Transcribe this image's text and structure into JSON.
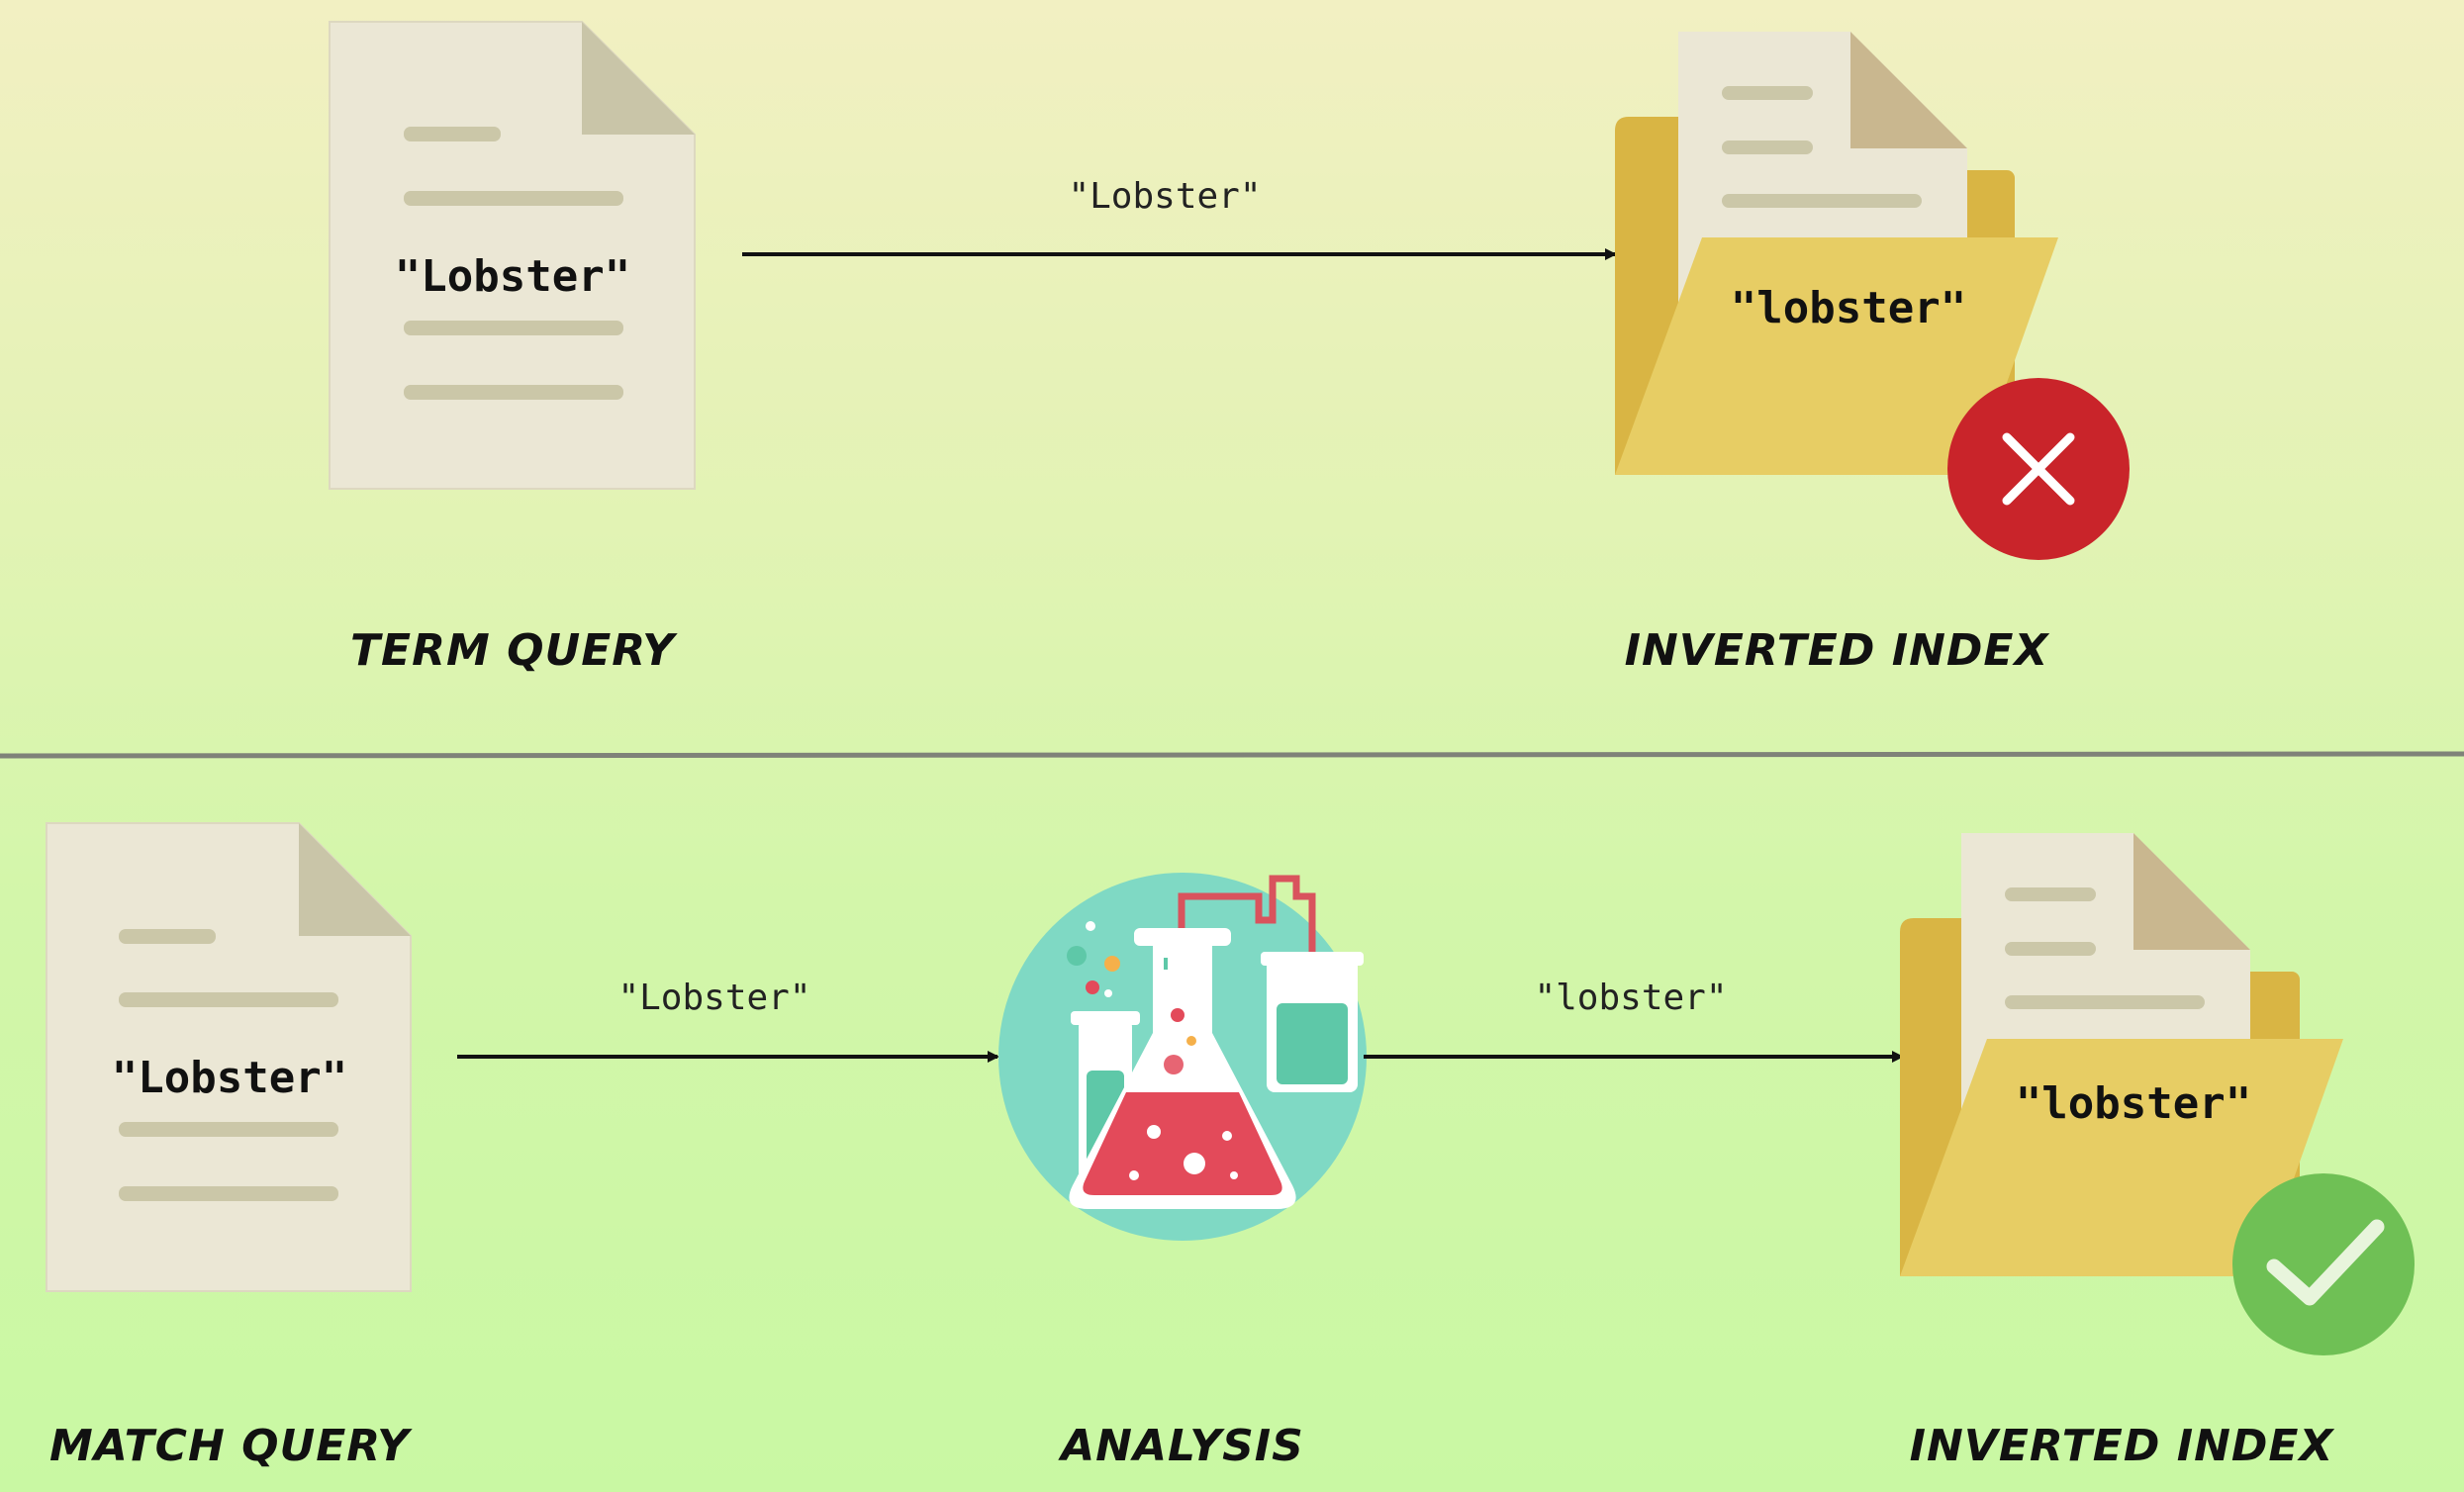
{
  "top": {
    "document_text": "\"Lobster\"",
    "arrow_text": "\"Lobster\"",
    "index_text": "\"lobster\"",
    "left_caption": "TERM QUERY",
    "right_caption": "INVERTED INDEX",
    "result_icon": "cross-icon",
    "result_color": "#c9242a"
  },
  "bottom": {
    "document_text": "\"Lobster\"",
    "arrow1_text": "\"Lobster\"",
    "arrow2_text": "\"lobster\"",
    "index_text": "\"lobster\"",
    "left_caption": "MATCH QUERY",
    "middle_caption": "ANALYSIS",
    "right_caption": "INVERTED INDEX",
    "result_icon": "check-icon",
    "result_color": "#6fc055"
  },
  "colors": {
    "document": "#ebe7d5",
    "document_fold": "#c9c5a8",
    "document_lines": "#cbc7a8",
    "folder_back": "#d9b544",
    "folder_front": "#e7cd64",
    "flask_circle": "#7fd9c4",
    "liquid_red": "#e34a5a",
    "liquid_teal": "#5ec8a8"
  }
}
